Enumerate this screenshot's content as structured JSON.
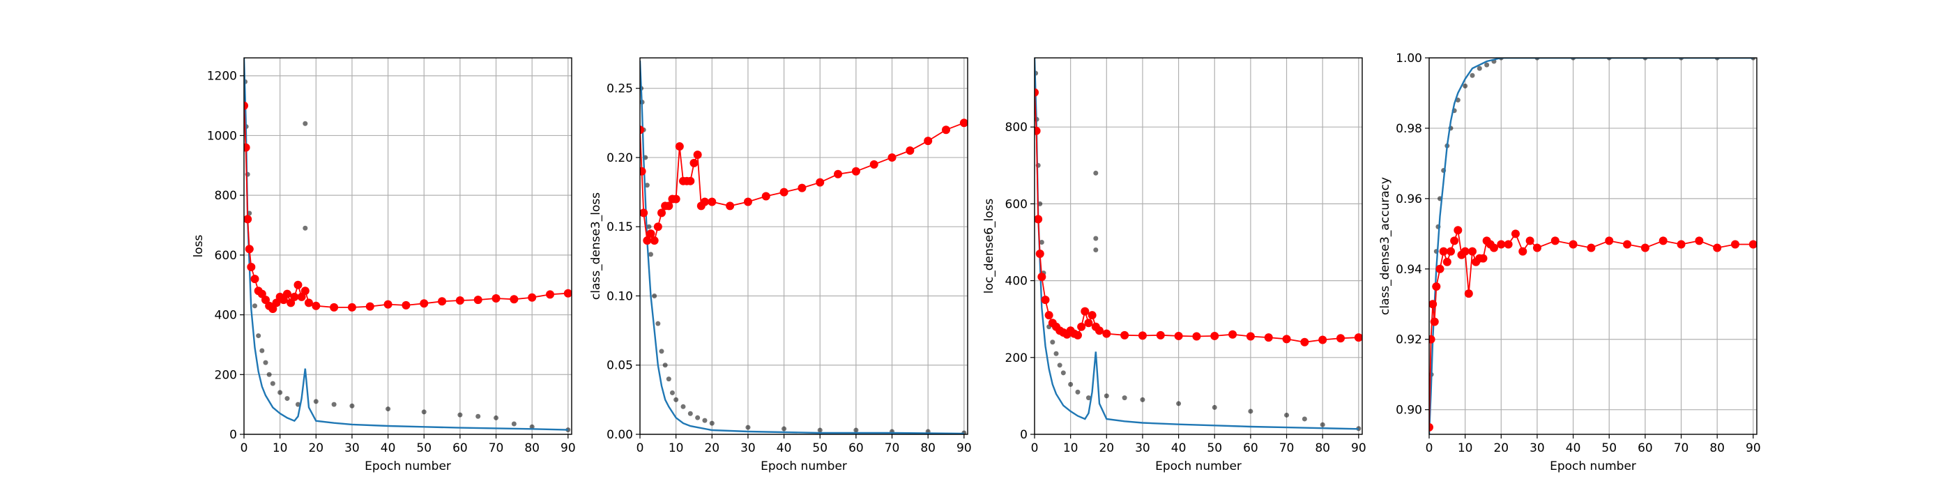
{
  "chart_data": [
    {
      "type": "scatter",
      "xlabel": "Epoch number",
      "ylabel": "loss",
      "xlim": [
        0,
        91
      ],
      "ylim": [
        0,
        1260
      ],
      "xticks": [
        0,
        10,
        20,
        30,
        40,
        50,
        60,
        70,
        80,
        90
      ],
      "yticks": [
        0,
        200,
        400,
        600,
        800,
        1000,
        1200
      ],
      "grid": true,
      "colors": {
        "batch": "#000000",
        "train": "#1f77b4",
        "val": "#ff0000"
      },
      "series": [
        {
          "role": "batch",
          "x": [
            0.3,
            0.6,
            1,
            1.5,
            2,
            2.5,
            3,
            4,
            5,
            6,
            7,
            8,
            10,
            12,
            15,
            17,
            17,
            20,
            25,
            30,
            40,
            50,
            60,
            65,
            70,
            75,
            80,
            90
          ],
          "y": [
            1180,
            1030,
            870,
            740,
            620,
            520,
            430,
            330,
            280,
            240,
            200,
            170,
            140,
            120,
            100,
            1040,
            690,
            110,
            100,
            95,
            85,
            75,
            65,
            60,
            55,
            35,
            25,
            15
          ]
        },
        {
          "role": "train",
          "x": [
            0,
            0.5,
            1,
            2,
            3,
            4,
            5,
            6,
            8,
            10,
            12,
            14,
            15,
            16,
            17,
            18,
            20,
            25,
            30,
            40,
            50,
            60,
            70,
            80,
            90
          ],
          "y": [
            1260,
            1050,
            720,
            420,
            290,
            210,
            160,
            130,
            90,
            70,
            55,
            45,
            60,
            120,
            220,
            90,
            45,
            38,
            33,
            28,
            25,
            22,
            20,
            18,
            15
          ]
        },
        {
          "role": "val",
          "x": [
            0,
            0.5,
            1,
            1.5,
            2,
            3,
            4,
            5,
            6,
            7,
            8,
            9,
            10,
            11,
            12,
            13,
            14,
            15,
            16,
            17,
            18,
            20,
            25,
            30,
            35,
            40,
            45,
            50,
            55,
            60,
            65,
            70,
            75,
            80,
            85,
            90
          ],
          "y": [
            1100,
            960,
            720,
            620,
            560,
            520,
            480,
            470,
            450,
            430,
            420,
            440,
            460,
            450,
            470,
            440,
            460,
            500,
            460,
            480,
            440,
            430,
            425,
            425,
            428,
            435,
            432,
            438,
            445,
            448,
            450,
            455,
            452,
            458,
            468,
            472
          ]
        }
      ]
    },
    {
      "type": "scatter",
      "xlabel": "Epoch number",
      "ylabel": "class_dense3_loss",
      "xlim": [
        0,
        91
      ],
      "ylim": [
        0,
        0.272
      ],
      "xticks": [
        0,
        10,
        20,
        30,
        40,
        50,
        60,
        70,
        80,
        90
      ],
      "yticks": [
        0.0,
        0.05,
        0.1,
        0.15,
        0.2,
        0.25
      ],
      "ytick_labels": [
        "0.00",
        "0.05",
        "0.10",
        "0.15",
        "0.20",
        "0.25"
      ],
      "grid": true,
      "colors": {
        "batch": "#000000",
        "train": "#1f77b4",
        "val": "#ff0000"
      },
      "series": [
        {
          "role": "batch",
          "x": [
            0.3,
            0.6,
            1,
            1.5,
            2,
            2.5,
            3,
            4,
            5,
            6,
            7,
            8,
            9,
            10,
            12,
            14,
            16,
            18,
            20,
            30,
            40,
            50,
            60,
            70,
            80,
            90
          ],
          "y": [
            0.25,
            0.24,
            0.22,
            0.2,
            0.18,
            0.15,
            0.13,
            0.1,
            0.08,
            0.06,
            0.05,
            0.04,
            0.03,
            0.025,
            0.02,
            0.015,
            0.012,
            0.01,
            0.008,
            0.005,
            0.004,
            0.003,
            0.003,
            0.002,
            0.002,
            0.001
          ]
        },
        {
          "role": "train",
          "x": [
            0,
            0.5,
            1,
            2,
            3,
            4,
            5,
            6,
            7,
            8,
            10,
            12,
            14,
            16,
            20,
            30,
            40,
            50,
            60,
            70,
            80,
            90
          ],
          "y": [
            0.27,
            0.24,
            0.2,
            0.14,
            0.1,
            0.075,
            0.05,
            0.035,
            0.025,
            0.02,
            0.012,
            0.008,
            0.006,
            0.005,
            0.003,
            0.002,
            0.0015,
            0.001,
            0.001,
            0.001,
            0.0008,
            0.0005
          ]
        },
        {
          "role": "val",
          "x": [
            0,
            0.5,
            1,
            2,
            3,
            4,
            5,
            6,
            7,
            8,
            9,
            10,
            11,
            12,
            13,
            14,
            15,
            16,
            17,
            18,
            20,
            25,
            30,
            35,
            40,
            45,
            50,
            55,
            60,
            65,
            70,
            75,
            80,
            85,
            90
          ],
          "y": [
            0.22,
            0.19,
            0.16,
            0.14,
            0.145,
            0.14,
            0.15,
            0.16,
            0.165,
            0.165,
            0.17,
            0.17,
            0.208,
            0.183,
            0.183,
            0.183,
            0.196,
            0.202,
            0.165,
            0.168,
            0.168,
            0.165,
            0.168,
            0.172,
            0.175,
            0.178,
            0.182,
            0.188,
            0.19,
            0.195,
            0.2,
            0.205,
            0.212,
            0.22,
            0.225
          ]
        }
      ]
    },
    {
      "type": "scatter",
      "xlabel": "Epoch number",
      "ylabel": "loc_dense6_loss",
      "xlim": [
        0,
        91
      ],
      "ylim": [
        0,
        980
      ],
      "xticks": [
        0,
        10,
        20,
        30,
        40,
        50,
        60,
        70,
        80,
        90
      ],
      "yticks": [
        0,
        200,
        400,
        600,
        800
      ],
      "grid": true,
      "colors": {
        "batch": "#000000",
        "train": "#1f77b4",
        "val": "#ff0000"
      },
      "series": [
        {
          "role": "batch",
          "x": [
            0.3,
            0.6,
            1,
            1.5,
            2,
            2.5,
            3,
            4,
            5,
            6,
            7,
            8,
            10,
            12,
            15,
            17,
            17,
            17,
            20,
            25,
            30,
            40,
            50,
            60,
            70,
            75,
            80,
            90
          ],
          "y": [
            940,
            820,
            700,
            600,
            500,
            420,
            350,
            280,
            240,
            210,
            180,
            160,
            130,
            110,
            95,
            680,
            510,
            480,
            100,
            95,
            90,
            80,
            70,
            60,
            50,
            40,
            25,
            15
          ]
        },
        {
          "role": "train",
          "x": [
            0,
            0.5,
            1,
            2,
            3,
            4,
            5,
            6,
            8,
            10,
            12,
            14,
            15,
            16,
            17,
            18,
            20,
            25,
            30,
            40,
            50,
            60,
            70,
            80,
            90
          ],
          "y": [
            980,
            820,
            570,
            330,
            230,
            170,
            130,
            105,
            75,
            60,
            48,
            40,
            55,
            110,
            215,
            80,
            40,
            34,
            30,
            26,
            23,
            20,
            18,
            16,
            14
          ]
        },
        {
          "role": "val",
          "x": [
            0,
            0.5,
            1,
            1.5,
            2,
            3,
            4,
            5,
            6,
            7,
            8,
            9,
            10,
            11,
            12,
            13,
            14,
            15,
            16,
            17,
            18,
            20,
            25,
            30,
            35,
            40,
            45,
            50,
            55,
            60,
            65,
            70,
            75,
            80,
            85,
            90
          ],
          "y": [
            890,
            790,
            560,
            470,
            410,
            350,
            310,
            290,
            280,
            270,
            265,
            260,
            270,
            262,
            258,
            280,
            320,
            290,
            310,
            280,
            270,
            262,
            258,
            257,
            258,
            256,
            255,
            256,
            260,
            255,
            252,
            248,
            240,
            246,
            250,
            252
          ]
        }
      ]
    },
    {
      "type": "scatter",
      "xlabel": "Epoch number",
      "ylabel": "class_dense3_accuracy",
      "xlim": [
        0,
        91
      ],
      "ylim": [
        0.893,
        1.0
      ],
      "xticks": [
        0,
        10,
        20,
        30,
        40,
        50,
        60,
        70,
        80,
        90
      ],
      "yticks": [
        0.9,
        0.92,
        0.94,
        0.96,
        0.98,
        1.0
      ],
      "ytick_labels": [
        "0.90",
        "0.92",
        "0.94",
        "0.96",
        "0.98",
        "1.00"
      ],
      "grid": true,
      "colors": {
        "batch": "#000000",
        "train": "#1f77b4",
        "val": "#ff0000"
      },
      "series": [
        {
          "role": "batch",
          "x": [
            0.3,
            0.6,
            1,
            1.5,
            2,
            2.5,
            3,
            4,
            5,
            6,
            7,
            8,
            10,
            12,
            14,
            16,
            18,
            20,
            30,
            40,
            50,
            60,
            70,
            80,
            90
          ],
          "y": [
            0.895,
            0.91,
            0.925,
            0.935,
            0.945,
            0.952,
            0.96,
            0.968,
            0.975,
            0.98,
            0.985,
            0.988,
            0.992,
            0.995,
            0.997,
            0.998,
            0.999,
            1.0,
            1.0,
            1.0,
            1.0,
            1.0,
            1.0,
            1.0,
            1.0
          ]
        },
        {
          "role": "train",
          "x": [
            0,
            0.5,
            1,
            2,
            3,
            4,
            5,
            6,
            7,
            8,
            10,
            12,
            14,
            16,
            18,
            20,
            30,
            40,
            50,
            60,
            70,
            80,
            90
          ],
          "y": [
            0.893,
            0.905,
            0.92,
            0.94,
            0.955,
            0.965,
            0.975,
            0.982,
            0.987,
            0.99,
            0.994,
            0.997,
            0.998,
            0.999,
            0.9995,
            1.0,
            1.0,
            1.0,
            1.0,
            1.0,
            1.0,
            1.0,
            1.0
          ]
        },
        {
          "role": "val",
          "x": [
            0,
            0.5,
            1,
            1.5,
            2,
            3,
            4,
            5,
            6,
            7,
            8,
            9,
            10,
            11,
            12,
            13,
            14,
            15,
            16,
            17,
            18,
            20,
            22,
            24,
            26,
            28,
            30,
            35,
            40,
            45,
            50,
            55,
            60,
            65,
            70,
            75,
            80,
            85,
            90
          ],
          "y": [
            0.895,
            0.92,
            0.93,
            0.925,
            0.935,
            0.94,
            0.945,
            0.942,
            0.945,
            0.948,
            0.951,
            0.944,
            0.945,
            0.933,
            0.945,
            0.942,
            0.943,
            0.943,
            0.948,
            0.947,
            0.946,
            0.947,
            0.947,
            0.95,
            0.945,
            0.948,
            0.946,
            0.948,
            0.947,
            0.946,
            0.948,
            0.947,
            0.946,
            0.948,
            0.947,
            0.948,
            0.946,
            0.947,
            0.947
          ]
        }
      ]
    }
  ]
}
